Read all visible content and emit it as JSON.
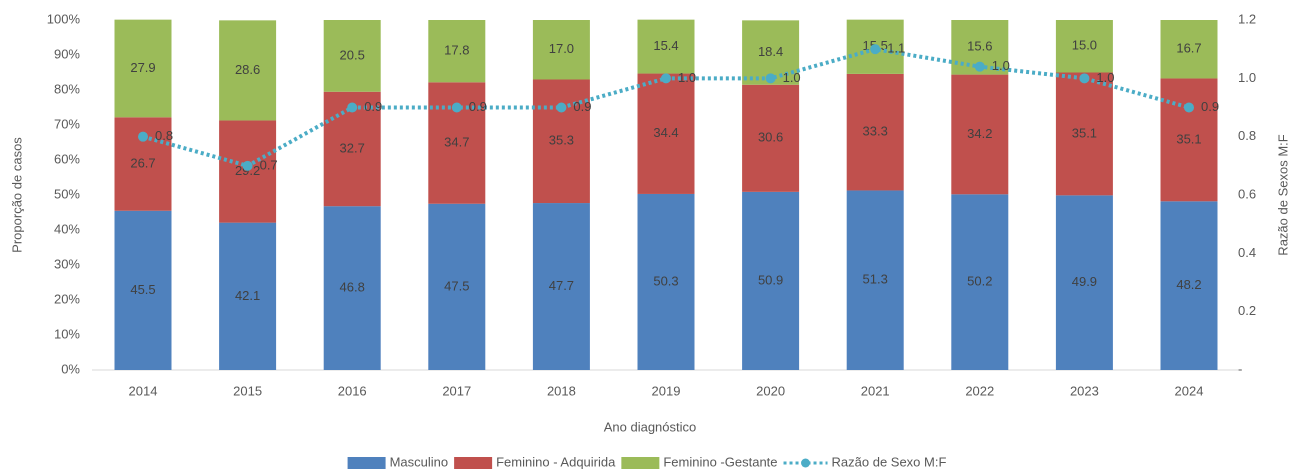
{
  "chart_data": {
    "type": "bar",
    "stacked": true,
    "categories": [
      "2014",
      "2015",
      "2016",
      "2017",
      "2018",
      "2019",
      "2020",
      "2021",
      "2022",
      "2023",
      "2024"
    ],
    "xlabel": "Ano diagnóstico",
    "ylabel": "Proporção de casos",
    "y2label": "Razão de Sexos M:F",
    "ylim": [
      0,
      100
    ],
    "yticks": [
      {
        "value": 0,
        "label": "0%"
      },
      {
        "value": 10,
        "label": "10%"
      },
      {
        "value": 20,
        "label": "20%"
      },
      {
        "value": 30,
        "label": "30%"
      },
      {
        "value": 40,
        "label": "40%"
      },
      {
        "value": 50,
        "label": "50%"
      },
      {
        "value": 60,
        "label": "60%"
      },
      {
        "value": 70,
        "label": "70%"
      },
      {
        "value": 80,
        "label": "80%"
      },
      {
        "value": 90,
        "label": "90%"
      },
      {
        "value": 100,
        "label": "100%"
      }
    ],
    "y2lim": [
      0,
      1.2
    ],
    "y2ticks": [
      {
        "value": 0,
        "label": "-"
      },
      0.2,
      0.4,
      0.6,
      0.8,
      {
        "value": 1.0,
        "label": "1.0"
      },
      1.2
    ],
    "series": [
      {
        "name": "Masculino",
        "color": "#4f81bd",
        "kind": "bar",
        "values": [
          45.5,
          42.1,
          46.8,
          47.5,
          47.7,
          50.3,
          50.9,
          51.3,
          50.2,
          49.9,
          48.2
        ],
        "value_labels": [
          "45.5",
          "42.1",
          "46.8",
          "47.5",
          "47.7",
          "50.3",
          "50.9",
          "51.3",
          "50.2",
          "49.9",
          "48.2"
        ]
      },
      {
        "name": "Feminino - Adquirida",
        "color": "#c0504d",
        "kind": "bar",
        "values": [
          26.7,
          29.2,
          32.7,
          34.7,
          35.3,
          34.4,
          30.6,
          33.3,
          34.2,
          35.1,
          35.1
        ],
        "value_labels": [
          "26.7",
          "29.2",
          "32.7",
          "34.7",
          "35.3",
          "34.4",
          "30.6",
          "33.3",
          "34.2",
          "35.1",
          "35.1"
        ]
      },
      {
        "name": "Feminino -Gestante",
        "color": "#9bbb59",
        "kind": "bar",
        "values": [
          27.9,
          28.6,
          20.5,
          17.8,
          17.0,
          15.4,
          18.4,
          15.5,
          15.6,
          15.0,
          16.7
        ],
        "value_labels": [
          "27.9",
          "28.6",
          "20.5",
          "17.8",
          "17.0",
          "15.4",
          "18.4",
          "15.5",
          "15.6",
          "15.0",
          "16.7"
        ]
      },
      {
        "name": "Razão de Sexo M:F",
        "color": "#4bacc6",
        "kind": "line",
        "axis": "y2",
        "values": [
          0.8,
          0.7,
          0.9,
          0.9,
          0.9,
          1.0,
          1.0,
          1.1,
          1.04,
          1.0,
          0.9
        ],
        "value_labels": [
          "0.8",
          "0.7",
          "0.9",
          "0.9",
          "0.9",
          "1.0",
          "1.0",
          "1.1",
          "1.0",
          "1.0",
          "0.9"
        ]
      }
    ]
  }
}
